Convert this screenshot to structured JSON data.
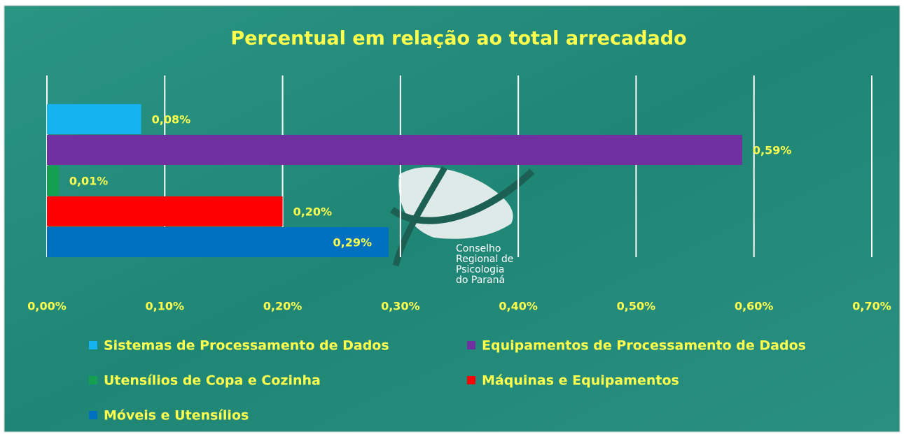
{
  "chart_data": {
    "type": "barh",
    "title": "Percentual em relação ao total arrecadado",
    "series": [
      {
        "name": "Sistemas de Processamento de Dados",
        "color": "#14b4f0",
        "values": [
          0.08
        ],
        "value_labels": [
          "0,08%"
        ]
      },
      {
        "name": "Equipamentos de Processamento de Dados",
        "color": "#7030a0",
        "values": [
          0.59
        ],
        "value_labels": [
          "0,59%"
        ]
      },
      {
        "name": "Utensílios de Copa e Cozinha",
        "color": "#14a050",
        "values": [
          0.01
        ],
        "value_labels": [
          "0,01%"
        ]
      },
      {
        "name": "Máquinas e Equipamentos",
        "color": "#ff0000",
        "values": [
          0.2
        ],
        "value_labels": [
          "0,20%"
        ]
      },
      {
        "name": "Móveis e Utensílios",
        "color": "#0070c0",
        "values": [
          0.29
        ],
        "value_labels": [
          "0,29%"
        ]
      }
    ],
    "xlim": [
      0,
      0.7
    ],
    "xticks": [
      {
        "value": 0,
        "label": "0,00%"
      },
      {
        "value": 0.1,
        "label": "0,10%"
      },
      {
        "value": 0.2,
        "label": "0,20%"
      },
      {
        "value": 0.3,
        "label": "0,30%"
      },
      {
        "value": 0.4,
        "label": "0,40%"
      },
      {
        "value": 0.5,
        "label": "0,50%"
      },
      {
        "value": 0.6,
        "label": "0,60%"
      },
      {
        "value": 0.7,
        "label": "0,70%"
      }
    ],
    "grid": true
  },
  "logo": {
    "lines": [
      "Conselho",
      "Regional de",
      "Psicologia",
      "do Paraná"
    ]
  }
}
